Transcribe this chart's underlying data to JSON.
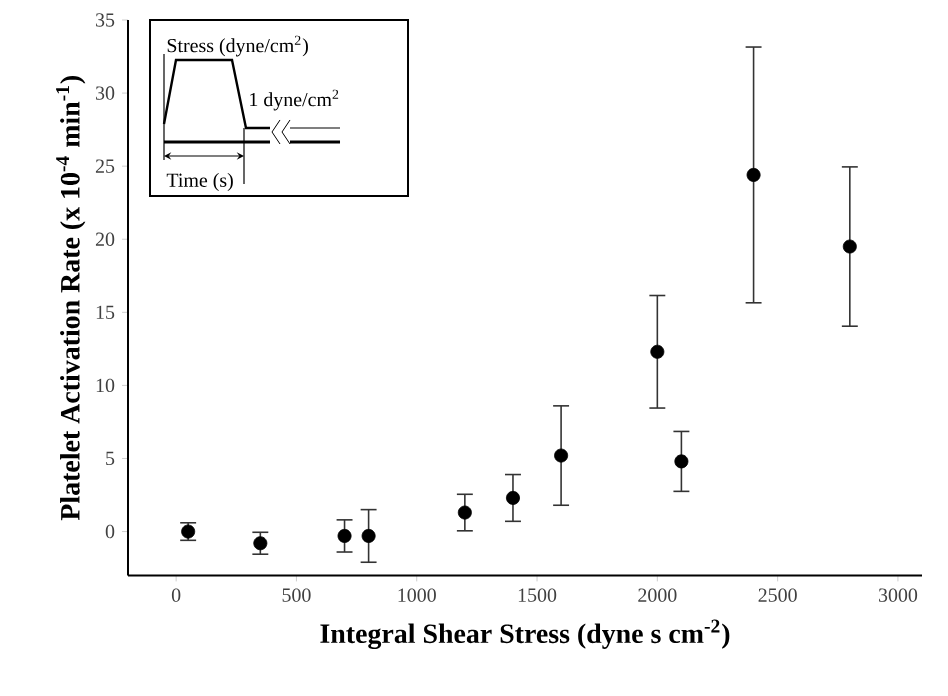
{
  "chart_data": {
    "type": "scatter",
    "xlabel": "Integral Shear Stress (dyne s cm$^{-2}$)",
    "ylabel": "Platelet Activation Rate (x 10$^{-4}$ min$^{-1}$)",
    "x": [
      50,
      350,
      700,
      800,
      1200,
      1400,
      1600,
      2000,
      2100,
      2400,
      2800
    ],
    "values": [
      0,
      -0.8,
      -0.3,
      -0.3,
      1.3,
      2.3,
      5.2,
      12.3,
      4.8,
      24.4,
      19.5
    ],
    "errors": [
      0.6,
      0.75,
      1.1,
      1.8,
      1.25,
      1.6,
      3.4,
      3.85,
      2.05,
      8.75,
      5.45
    ],
    "color": "#000000",
    "marker": "circle",
    "xlim": [
      -200,
      3100
    ],
    "ylim": [
      -3,
      35
    ],
    "xticks": [
      0,
      500,
      1000,
      1500,
      2000,
      2500,
      3000
    ],
    "yticks": [
      0,
      5,
      10,
      15,
      20,
      25,
      30,
      35
    ],
    "annotations": [
      "Stress (dyne/cm$^{2}$)",
      "1 dyne/cm$^{2}$",
      "Time (s)"
    ]
  }
}
